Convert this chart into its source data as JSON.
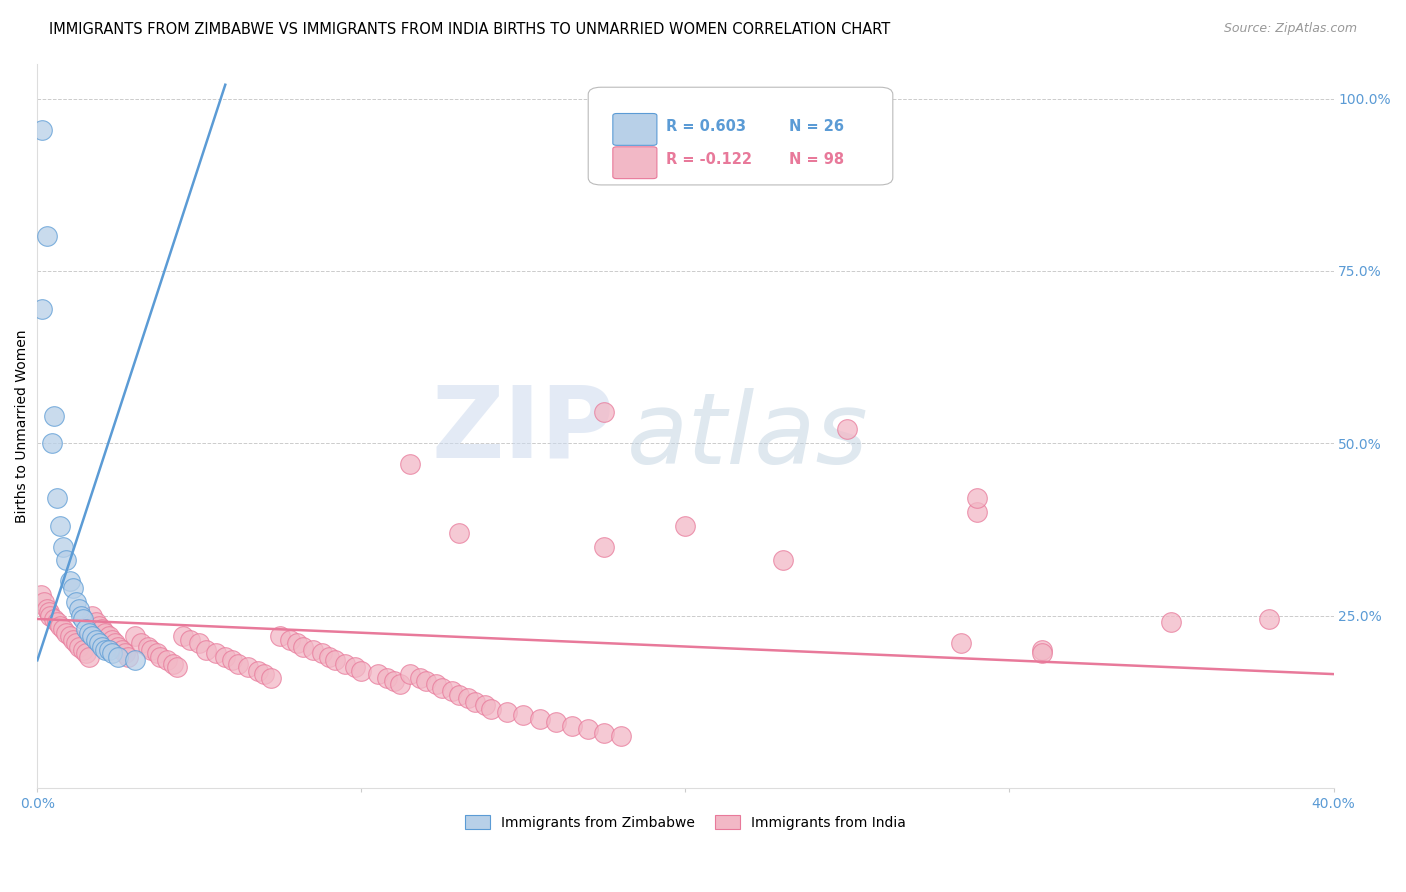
{
  "title": "IMMIGRANTS FROM ZIMBABWE VS IMMIGRANTS FROM INDIA BIRTHS TO UNMARRIED WOMEN CORRELATION CHART",
  "source": "Source: ZipAtlas.com",
  "xmin": 0.0,
  "xmax": 0.4,
  "ymin": 0.0,
  "ymax": 1.05,
  "zimbabwe_color": "#b8d0e8",
  "india_color": "#f2b8c6",
  "zimbabwe_line_color": "#5b9bd5",
  "india_line_color": "#e8799a",
  "legend_r_zimbabwe": "R = 0.603",
  "legend_n_zimbabwe": "N = 26",
  "legend_r_india": "R = -0.122",
  "legend_n_india": "N = 98",
  "legend_label_zimbabwe": "Immigrants from Zimbabwe",
  "legend_label_india": "Immigrants from India",
  "watermark_zip": "ZIP",
  "watermark_atlas": "atlas",
  "zimbabwe_trend_x": [
    0.0,
    0.058
  ],
  "zimbabwe_trend_y": [
    0.185,
    1.02
  ],
  "india_trend_x": [
    0.0,
    0.4
  ],
  "india_trend_y": [
    0.245,
    0.165
  ],
  "zimbabwe_x": [
    0.0015,
    0.003,
    0.0045,
    0.005,
    0.006,
    0.007,
    0.008,
    0.009,
    0.01,
    0.011,
    0.012,
    0.013,
    0.0135,
    0.014,
    0.015,
    0.016,
    0.017,
    0.018,
    0.019,
    0.02,
    0.021,
    0.022,
    0.023,
    0.025,
    0.03,
    0.0015
  ],
  "zimbabwe_y": [
    0.695,
    0.8,
    0.5,
    0.54,
    0.42,
    0.38,
    0.35,
    0.33,
    0.3,
    0.29,
    0.27,
    0.26,
    0.25,
    0.245,
    0.23,
    0.225,
    0.22,
    0.215,
    0.21,
    0.205,
    0.2,
    0.2,
    0.195,
    0.19,
    0.185,
    0.955
  ],
  "india_x": [
    0.001,
    0.002,
    0.003,
    0.0035,
    0.004,
    0.005,
    0.006,
    0.007,
    0.008,
    0.009,
    0.01,
    0.011,
    0.012,
    0.013,
    0.014,
    0.015,
    0.016,
    0.017,
    0.018,
    0.019,
    0.02,
    0.021,
    0.022,
    0.023,
    0.024,
    0.025,
    0.026,
    0.027,
    0.028,
    0.03,
    0.032,
    0.034,
    0.035,
    0.037,
    0.038,
    0.04,
    0.042,
    0.043,
    0.045,
    0.047,
    0.05,
    0.052,
    0.055,
    0.058,
    0.06,
    0.062,
    0.065,
    0.068,
    0.07,
    0.072,
    0.075,
    0.078,
    0.08,
    0.082,
    0.085,
    0.088,
    0.09,
    0.092,
    0.095,
    0.098,
    0.1,
    0.105,
    0.108,
    0.11,
    0.112,
    0.115,
    0.118,
    0.12,
    0.123,
    0.125,
    0.128,
    0.13,
    0.133,
    0.135,
    0.138,
    0.14,
    0.145,
    0.15,
    0.155,
    0.16,
    0.165,
    0.17,
    0.175,
    0.18,
    0.115,
    0.13,
    0.175,
    0.2,
    0.23,
    0.285,
    0.31,
    0.29,
    0.35,
    0.38,
    0.25,
    0.29,
    0.31,
    0.175
  ],
  "india_y": [
    0.28,
    0.27,
    0.26,
    0.255,
    0.25,
    0.245,
    0.24,
    0.235,
    0.23,
    0.225,
    0.22,
    0.215,
    0.21,
    0.205,
    0.2,
    0.195,
    0.19,
    0.25,
    0.24,
    0.235,
    0.23,
    0.225,
    0.22,
    0.215,
    0.21,
    0.205,
    0.2,
    0.195,
    0.19,
    0.22,
    0.21,
    0.205,
    0.2,
    0.195,
    0.19,
    0.185,
    0.18,
    0.175,
    0.22,
    0.215,
    0.21,
    0.2,
    0.195,
    0.19,
    0.185,
    0.18,
    0.175,
    0.17,
    0.165,
    0.16,
    0.22,
    0.215,
    0.21,
    0.205,
    0.2,
    0.195,
    0.19,
    0.185,
    0.18,
    0.175,
    0.17,
    0.165,
    0.16,
    0.155,
    0.15,
    0.165,
    0.16,
    0.155,
    0.15,
    0.145,
    0.14,
    0.135,
    0.13,
    0.125,
    0.12,
    0.115,
    0.11,
    0.105,
    0.1,
    0.095,
    0.09,
    0.085,
    0.08,
    0.075,
    0.47,
    0.37,
    0.35,
    0.38,
    0.33,
    0.21,
    0.2,
    0.4,
    0.24,
    0.245,
    0.52,
    0.42,
    0.195,
    0.545
  ]
}
